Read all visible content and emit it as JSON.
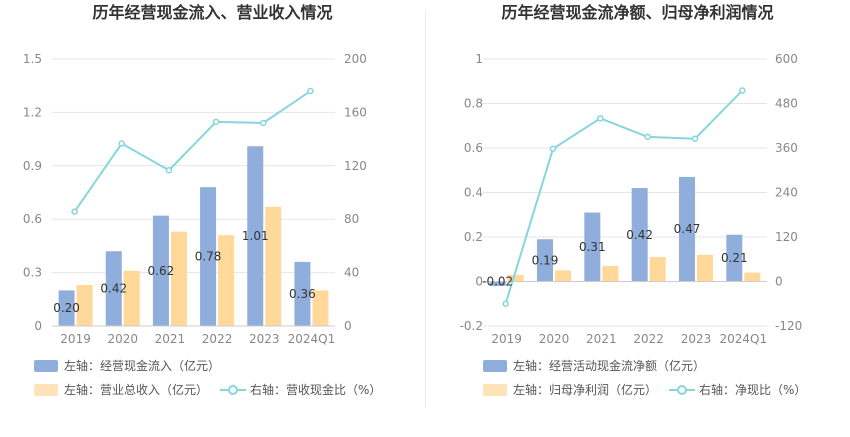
{
  "colors": {
    "blue": "#8faedc",
    "yellow": "#ffd89a",
    "teal": "#86d6dc",
    "grid": "#e6e6e6",
    "axis_text": "#888888",
    "label_text": "#333333"
  },
  "chart_data": [
    {
      "type": "bar",
      "title": "历年经营现金流入、营业收入情况",
      "categories": [
        "2019",
        "2020",
        "2021",
        "2022",
        "2023",
        "2024Q1"
      ],
      "left_axis": {
        "ylim": [
          0,
          1.5
        ],
        "ticks": [
          "0",
          "0.3",
          "0.6",
          "0.9",
          "1.2",
          "1.5"
        ]
      },
      "right_axis": {
        "ylim": [
          0,
          200
        ],
        "ticks": [
          "0",
          "40",
          "80",
          "120",
          "160",
          "200"
        ]
      },
      "series": [
        {
          "name": "左轴：经营现金流入（亿元）",
          "kind": "bar",
          "axis": "left",
          "color": "#8faedc",
          "values": [
            0.2,
            0.42,
            0.62,
            0.78,
            1.01,
            0.36
          ],
          "labels": [
            "0.20",
            "0.42",
            "0.62",
            "0.78",
            "1.01",
            "0.36"
          ]
        },
        {
          "name": "左轴：营业总收入（亿元）",
          "kind": "bar",
          "axis": "left",
          "color": "#ffd89a",
          "values": [
            0.23,
            0.31,
            0.53,
            0.51,
            0.67,
            0.2
          ]
        },
        {
          "name": "右轴：营收现金比（%）",
          "kind": "line",
          "axis": "right",
          "color": "#86d6dc",
          "values": [
            85.7,
            136.7,
            116.7,
            152.9,
            152.1,
            176.0
          ]
        }
      ],
      "legend": [
        {
          "label": "左轴：经营现金流入（亿元）",
          "type": "bar",
          "color": "#8faedc"
        },
        {
          "label": "左轴：营业总收入（亿元）",
          "type": "bar",
          "color": "#ffd89a"
        },
        {
          "label": "右轴：营收现金比（%）",
          "type": "line",
          "color": "#86d6dc"
        }
      ]
    },
    {
      "type": "bar",
      "title": "历年经营现金流净额、归母净利润情况",
      "categories": [
        "2019",
        "2020",
        "2021",
        "2022",
        "2023",
        "2024Q1"
      ],
      "left_axis": {
        "ylim": [
          -0.2,
          1.0
        ],
        "ticks": [
          "-0.2",
          "0",
          "0.2",
          "0.4",
          "0.6",
          "0.8",
          "1"
        ]
      },
      "right_axis": {
        "ylim": [
          -120,
          600
        ],
        "ticks": [
          "-120",
          "0",
          "120",
          "240",
          "360",
          "480",
          "600"
        ]
      },
      "series": [
        {
          "name": "左轴：经营活动现金流净额（亿元）",
          "kind": "bar",
          "axis": "left",
          "color": "#8faedc",
          "values": [
            -0.02,
            0.19,
            0.31,
            0.42,
            0.47,
            0.21
          ],
          "labels": [
            "-0.02",
            "0.19",
            "0.31",
            "0.42",
            "0.47",
            "0.21"
          ]
        },
        {
          "name": "左轴：归母净利润（亿元）",
          "kind": "bar",
          "axis": "left",
          "color": "#ffd89a",
          "values": [
            0.03,
            0.05,
            0.07,
            0.11,
            0.12,
            0.04
          ]
        },
        {
          "name": "右轴：净现比（%）",
          "kind": "line",
          "axis": "right",
          "color": "#86d6dc",
          "values": [
            -60,
            358,
            440,
            390,
            385,
            515
          ]
        }
      ],
      "legend": [
        {
          "label": "左轴：经营活动现金流净额（亿元）",
          "type": "bar",
          "color": "#8faedc"
        },
        {
          "label": "左轴：归母净利润（亿元）",
          "type": "bar",
          "color": "#ffd89a"
        },
        {
          "label": "右轴：净现比（%）",
          "type": "line",
          "color": "#86d6dc"
        }
      ]
    }
  ]
}
